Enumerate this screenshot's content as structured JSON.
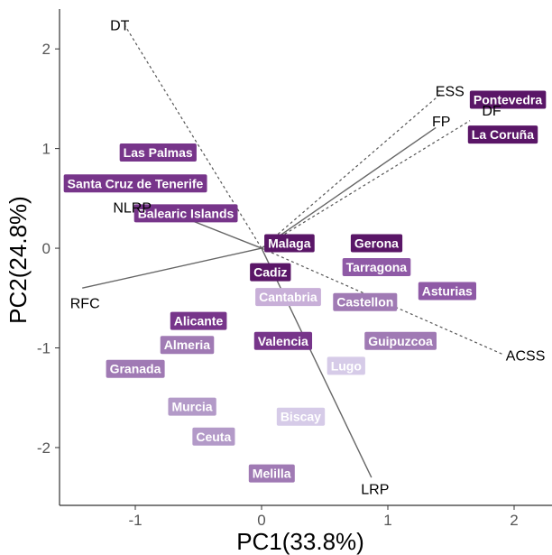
{
  "chart_data": {
    "type": "scatter",
    "xlabel": "PC1(33.8%)",
    "ylabel": "PC2(24.8%)",
    "xlim": [
      -1.6,
      2.3
    ],
    "ylim": [
      -2.58,
      2.4
    ],
    "x_ticks": [
      {
        "value": -1,
        "label": "-1"
      },
      {
        "value": 0,
        "label": "0"
      },
      {
        "value": 1,
        "label": "1"
      },
      {
        "value": 2,
        "label": "2"
      }
    ],
    "y_ticks": [
      {
        "value": 2,
        "label": "2"
      },
      {
        "value": 1,
        "label": "1"
      },
      {
        "value": 0,
        "label": "0"
      },
      {
        "value": -1,
        "label": "-1"
      },
      {
        "value": -2,
        "label": "-2"
      }
    ],
    "grid": false,
    "observations": [
      {
        "label": "Pontevedra",
        "x": 1.95,
        "y": 1.49,
        "color": "#5a1667"
      },
      {
        "label": "La Coruña",
        "x": 1.91,
        "y": 1.14,
        "color": "#5a1667"
      },
      {
        "label": "Las Palmas",
        "x": -0.82,
        "y": 0.96,
        "color": "#77358a"
      },
      {
        "label": "Santa Cruz de Tenerife",
        "x": -1.0,
        "y": 0.65,
        "color": "#77358a"
      },
      {
        "label": "Balearic Islands",
        "x": -0.6,
        "y": 0.35,
        "color": "#77358a"
      },
      {
        "label": "Malaga",
        "x": 0.22,
        "y": 0.05,
        "color": "#5a1667"
      },
      {
        "label": "Gerona",
        "x": 0.91,
        "y": 0.05,
        "color": "#5a1667"
      },
      {
        "label": "Tarragona",
        "x": 0.91,
        "y": -0.19,
        "color": "#8f5aa6"
      },
      {
        "label": "Cadiz",
        "x": 0.07,
        "y": -0.24,
        "color": "#5a1667"
      },
      {
        "label": "Asturias",
        "x": 1.47,
        "y": -0.43,
        "color": "#8f5aa6"
      },
      {
        "label": "Cantabria",
        "x": 0.21,
        "y": -0.49,
        "color": "#c8afd8"
      },
      {
        "label": "Castellon",
        "x": 0.82,
        "y": -0.54,
        "color": "#a07ab4"
      },
      {
        "label": "Alicante",
        "x": -0.5,
        "y": -0.73,
        "color": "#77358a"
      },
      {
        "label": "Almeria",
        "x": -0.59,
        "y": -0.97,
        "color": "#a07ab4"
      },
      {
        "label": "Valencia",
        "x": 0.17,
        "y": -0.93,
        "color": "#77358a"
      },
      {
        "label": "Guipuzcoa",
        "x": 1.1,
        "y": -0.93,
        "color": "#a07ab4"
      },
      {
        "label": "Lugo",
        "x": 0.67,
        "y": -1.18,
        "color": "#d6cbe8"
      },
      {
        "label": "Granada",
        "x": -1.0,
        "y": -1.21,
        "color": "#a07ab4"
      },
      {
        "label": "Murcia",
        "x": -0.55,
        "y": -1.59,
        "color": "#b39ac8"
      },
      {
        "label": "Biscay",
        "x": 0.31,
        "y": -1.69,
        "color": "#d6cbe8"
      },
      {
        "label": "Ceuta",
        "x": -0.38,
        "y": -1.89,
        "color": "#b39ac8"
      },
      {
        "label": "Melilla",
        "x": 0.08,
        "y": -2.26,
        "color": "#a07ab4"
      }
    ],
    "variables": [
      {
        "label": "DT",
        "x": -1.08,
        "y": 2.23,
        "line": "dashed",
        "anchor": "middle",
        "dx": -6,
        "dy": 0
      },
      {
        "label": "ESS",
        "x": 1.42,
        "y": 1.55,
        "line": "dashed",
        "anchor": "middle",
        "dx": 10,
        "dy": -2
      },
      {
        "label": "DF",
        "x": 1.65,
        "y": 1.28,
        "line": "dashed",
        "anchor": "middle",
        "dx": 24,
        "dy": -10
      },
      {
        "label": "FP",
        "x": 1.38,
        "y": 1.21,
        "line": "solid",
        "anchor": "middle",
        "dx": 6,
        "dy": -6
      },
      {
        "label": "NLRP",
        "x": -0.8,
        "y": 0.4,
        "line": "solid",
        "anchor": "end",
        "dx": -10,
        "dy": 0
      },
      {
        "label": "RFC",
        "x": -1.42,
        "y": -0.4,
        "line": "solid",
        "anchor": "middle",
        "dx": 3,
        "dy": 18
      },
      {
        "label": "ACSS",
        "x": 1.92,
        "y": -1.07,
        "line": "dashed",
        "anchor": "start",
        "dx": 2,
        "dy": 2
      },
      {
        "label": "LRP",
        "x": 0.87,
        "y": -2.3,
        "line": "solid",
        "anchor": "middle",
        "dx": 4,
        "dy": 14
      }
    ]
  }
}
